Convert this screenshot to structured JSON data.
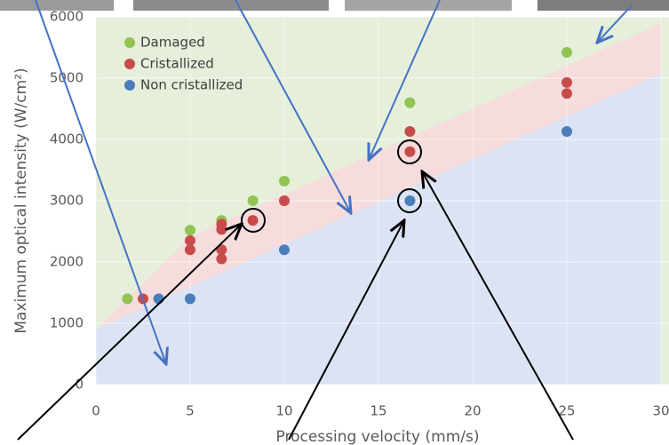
{
  "chart_data": {
    "type": "scatter",
    "xlabel": "Processing velocity (mm/s)",
    "ylabel": "Maximum optical intensity (W/cm²)",
    "xlim": [
      0,
      30
    ],
    "ylim": [
      0,
      6000
    ],
    "xticks": [
      0,
      5,
      10,
      15,
      20,
      25,
      30
    ],
    "yticks": [
      0,
      1000,
      2000,
      3000,
      4000,
      5000,
      6000
    ],
    "grid": true,
    "series": [
      {
        "name": "Damaged",
        "color": "#92c353",
        "x": [
          1.67,
          5,
          6.67,
          8.33,
          10,
          16.67,
          25
        ],
        "values": [
          1400,
          2520,
          2680,
          3000,
          3320,
          4600,
          5420
        ]
      },
      {
        "name": "Cristallized",
        "color": "#c84b4b",
        "x": [
          2.5,
          5,
          5,
          6.67,
          6.67,
          6.67,
          6.67,
          8.33,
          10,
          16.67,
          16.67,
          25,
          25
        ],
        "values": [
          1400,
          2350,
          2200,
          2620,
          2530,
          2200,
          2050,
          2680,
          3000,
          4130,
          3800,
          4930,
          4750
        ]
      },
      {
        "name": "Non cristallized",
        "color": "#4a7ebb",
        "x": [
          3.33,
          5,
          10,
          16.67,
          25
        ],
        "values": [
          1400,
          1400,
          2200,
          3000,
          4130
        ]
      }
    ]
  }
}
